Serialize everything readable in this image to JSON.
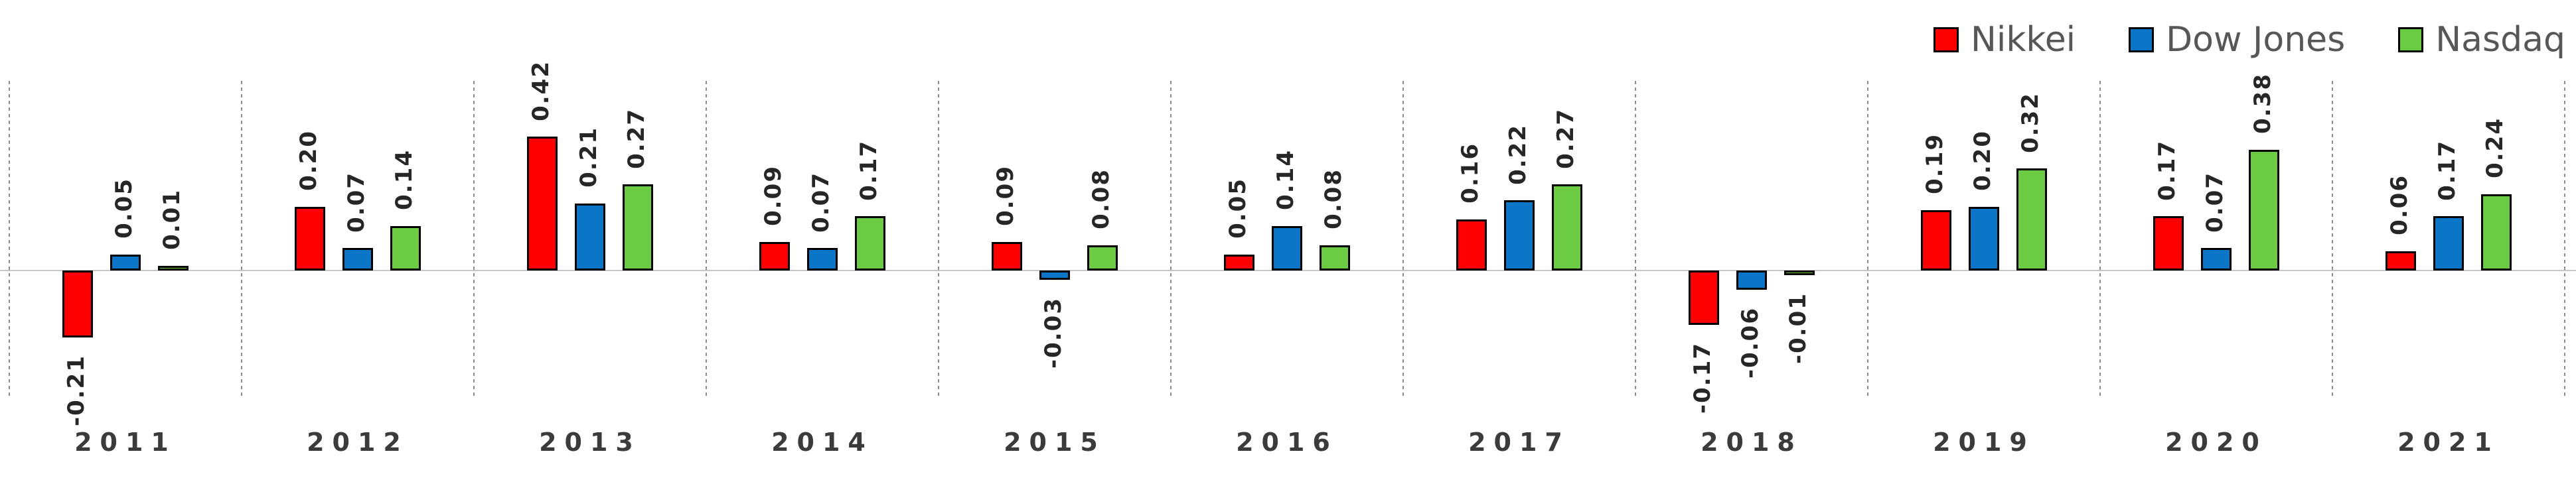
{
  "chart_data": {
    "type": "bar",
    "title": "",
    "xlabel": "",
    "ylabel": "",
    "categories": [
      "2011",
      "2012",
      "2013",
      "2014",
      "2015",
      "2016",
      "2017",
      "2018",
      "2019",
      "2020",
      "2021"
    ],
    "series": [
      {
        "name": "Nikkei",
        "color": "#FF0000",
        "values": [
          -0.21,
          0.2,
          0.42,
          0.09,
          0.09,
          0.05,
          0.16,
          -0.17,
          0.19,
          0.17,
          0.06
        ]
      },
      {
        "name": "Dow Jones",
        "color": "#0B76C8",
        "values": [
          0.05,
          0.07,
          0.21,
          0.07,
          -0.03,
          0.14,
          0.22,
          -0.06,
          0.2,
          0.07,
          0.17
        ]
      },
      {
        "name": "Nasdaq",
        "color": "#6BCB43",
        "values": [
          0.01,
          0.14,
          0.27,
          0.17,
          0.08,
          0.08,
          0.27,
          -0.01,
          0.32,
          0.38,
          0.24
        ]
      }
    ],
    "legend": [
      "Nikkei",
      "Dow Jones",
      "Nasdaq"
    ],
    "legend_position": "top-right",
    "value_label_format": "0.00",
    "value_label_rotation_deg": 90,
    "ylim": [
      -0.25,
      0.45
    ],
    "y_axis_visible": false,
    "grid": "vertical dotted separators between year groups",
    "zero_line_color": "#C6C6C6",
    "separator_line_color": "#8C8C8C",
    "bar_outline_color": "#000000",
    "value_label_color": "#262626",
    "category_label_color": "#3B3B3B",
    "legend_text_color": "#575757",
    "background_color": "#FFFFFF"
  }
}
